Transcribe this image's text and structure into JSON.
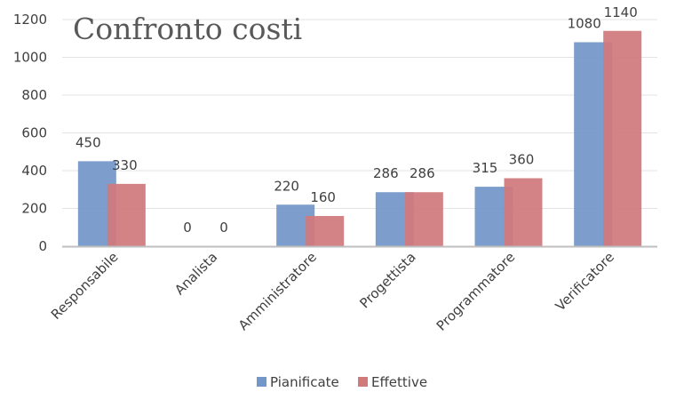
{
  "chart_data": {
    "type": "bar",
    "title": "Confronto costi",
    "xlabel": "",
    "ylabel": "",
    "categories": [
      "Responsabile",
      "Analista",
      "Amministratore",
      "Progettista",
      "Programmatore",
      "Verificatore"
    ],
    "series": [
      {
        "name": "Pianificate",
        "values": [
          450,
          0,
          220,
          286,
          315,
          1080
        ],
        "color": "#7397c8"
      },
      {
        "name": "Effettive",
        "values": [
          330,
          0,
          160,
          286,
          360,
          1140
        ],
        "color": "#d07a7c"
      }
    ],
    "ylim": [
      0,
      1200
    ],
    "yticks": [
      0,
      200,
      400,
      600,
      800,
      1000,
      1200
    ],
    "grid": true,
    "legend": "bottom"
  }
}
